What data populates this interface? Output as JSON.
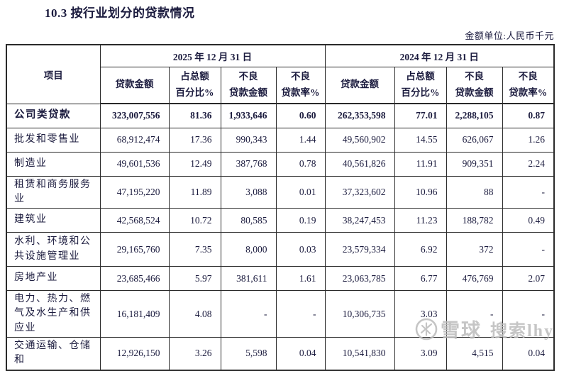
{
  "document": {
    "section_title": "10.3 按行业划分的贷款情况",
    "unit_note": "金额单位:人民币千元"
  },
  "table": {
    "header": {
      "item": "项目",
      "period_2025": "2025 年 12 月 31 日",
      "period_2024": "2024 年 12 月 31 日",
      "loan_amount": "贷款金额",
      "pct_of_total_l1": "占总额",
      "pct_of_total_l2": "百分比%",
      "npl_amount_l1": "不良",
      "npl_amount_l2": "贷款金额",
      "npl_ratio_l1": "不良",
      "npl_ratio_l2": "贷款率%"
    },
    "rows": [
      {
        "item": "公司类贷款",
        "bold": true,
        "tall": false,
        "values": [
          "323,007,556",
          "81.36",
          "1,933,646",
          "0.60",
          "262,353,598",
          "77.01",
          "2,288,105",
          "0.87"
        ]
      },
      {
        "item": "批发和零售业",
        "bold": false,
        "tall": false,
        "values": [
          "68,912,474",
          "17.36",
          "990,343",
          "1.44",
          "49,560,902",
          "14.55",
          "626,067",
          "1.26"
        ]
      },
      {
        "item": "制造业",
        "bold": false,
        "tall": false,
        "values": [
          "49,601,536",
          "12.49",
          "387,768",
          "0.78",
          "40,561,826",
          "11.91",
          "909,351",
          "2.24"
        ]
      },
      {
        "item": "租赁和商务服务业",
        "bold": false,
        "tall": false,
        "values": [
          "47,195,220",
          "11.89",
          "3,088",
          "0.01",
          "37,323,602",
          "10.96",
          "88",
          "-"
        ]
      },
      {
        "item": "建筑业",
        "bold": false,
        "tall": false,
        "values": [
          "42,568,524",
          "10.72",
          "80,585",
          "0.19",
          "38,247,453",
          "11.23",
          "188,782",
          "0.49"
        ]
      },
      {
        "item": "水利、环境和公共设施管理业",
        "bold": false,
        "tall": true,
        "values": [
          "29,165,760",
          "7.35",
          "8,000",
          "0.03",
          "23,579,334",
          "6.92",
          "372",
          "-"
        ]
      },
      {
        "item": "房地产业",
        "bold": false,
        "tall": false,
        "values": [
          "23,685,466",
          "5.97",
          "381,611",
          "1.61",
          "23,063,785",
          "6.77",
          "476,769",
          "2.07"
        ]
      },
      {
        "item": "电力、热力、燃气及水生产和供应业",
        "bold": false,
        "tall": true,
        "values": [
          "16,181,409",
          "4.08",
          "-",
          "-",
          "10,306,735",
          "3.03",
          "-",
          "-"
        ]
      },
      {
        "item": "交通运输、仓储和",
        "bold": false,
        "tall": false,
        "values": [
          "12,926,150",
          "3.26",
          "5,598",
          "0.04",
          "10,541,830",
          "3.09",
          "4,515",
          "0.04"
        ]
      }
    ]
  },
  "watermark": {
    "logo_icon": "xueqiu-logo",
    "brand": "雪球",
    "suffix": "搜索lhy"
  },
  "colors": {
    "text": "#1b1b3e",
    "border": "#2a2a2a",
    "watermark": "#bcbcbc",
    "background": "#ffffff"
  }
}
